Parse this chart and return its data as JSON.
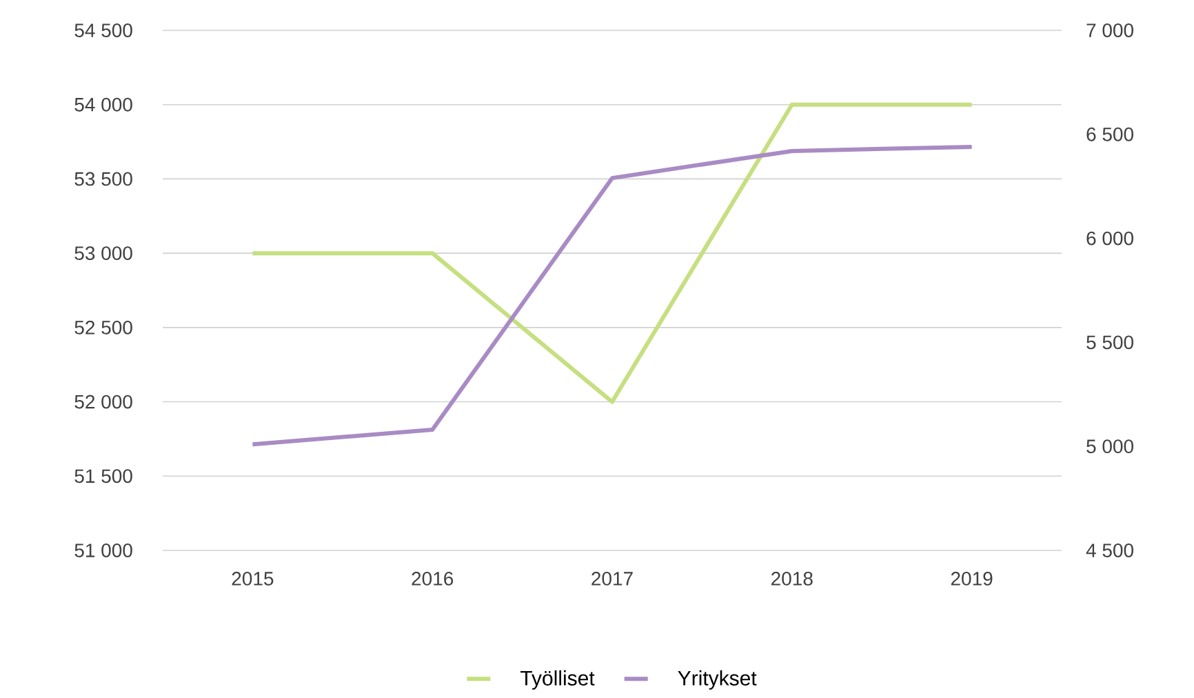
{
  "chart_data": {
    "type": "line",
    "categories": [
      "2015",
      "2016",
      "2017",
      "2018",
      "2019"
    ],
    "series": [
      {
        "name": "Työlliset",
        "color": "#c6df80",
        "values": [
          53000,
          53000,
          52000,
          54000,
          54000
        ]
      },
      {
        "name": "Yritykset",
        "color": "#a98bc4",
        "axis": "y2",
        "values": [
          5010,
          5080,
          6290,
          6420,
          6440
        ]
      }
    ],
    "ylim": [
      51000,
      54500
    ],
    "yticks": [
      {
        "value": 51000,
        "label": "51 000"
      },
      {
        "value": 51500,
        "label": "51 500"
      },
      {
        "value": 52000,
        "label": "52 000"
      },
      {
        "value": 52500,
        "label": "52 500"
      },
      {
        "value": 53000,
        "label": "53 000"
      },
      {
        "value": 53500,
        "label": "53 500"
      },
      {
        "value": 54000,
        "label": "54 000"
      },
      {
        "value": 54500,
        "label": "54 500"
      }
    ],
    "y2lim": [
      4500,
      7000
    ],
    "y2ticks": [
      {
        "value": 4500,
        "label": "4 500"
      },
      {
        "value": 5000,
        "label": "5 000"
      },
      {
        "value": 5500,
        "label": "5 500"
      },
      {
        "value": 6000,
        "label": "6 000"
      },
      {
        "value": 6500,
        "label": "6 500"
      },
      {
        "value": 7000,
        "label": "7 000"
      }
    ],
    "grid": "y",
    "legend": "bottom",
    "marker": "none",
    "line_style": "solid"
  }
}
